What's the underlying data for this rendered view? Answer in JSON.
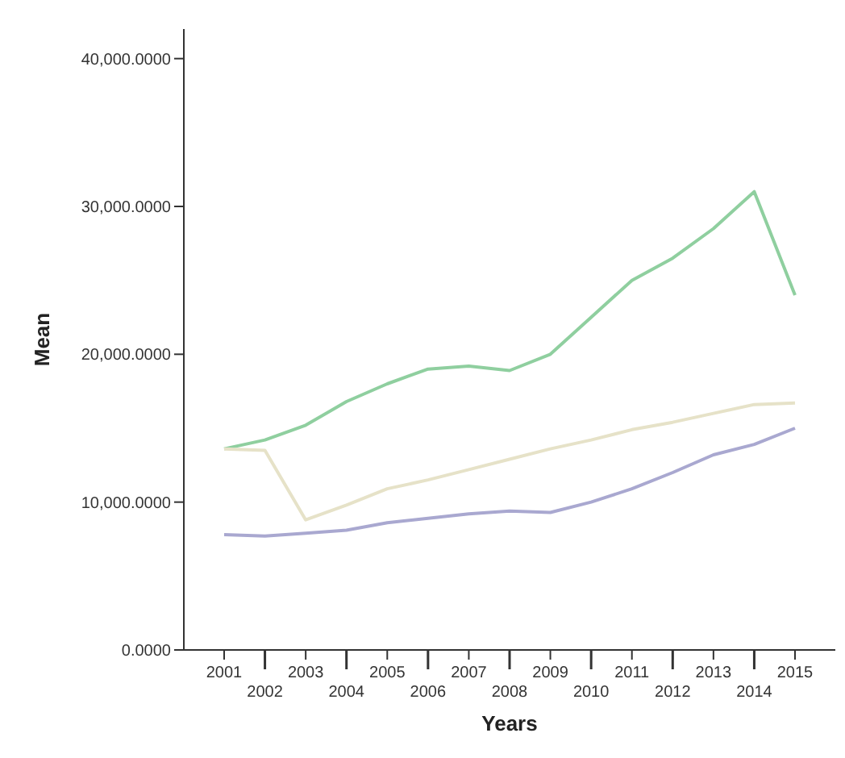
{
  "chart_data": {
    "type": "line",
    "xlabel": "Years",
    "ylabel": "Mean",
    "categories": [
      "2001",
      "2002",
      "2003",
      "2004",
      "2005",
      "2006",
      "2007",
      "2008",
      "2009",
      "2010",
      "2011",
      "2012",
      "2013",
      "2014",
      "2015"
    ],
    "series": [
      {
        "color": "#8fcf9f",
        "values": [
          13600,
          14200,
          15200,
          16800,
          18000,
          19000,
          19200,
          18900,
          20000,
          22500,
          25000,
          26500,
          28500,
          31000,
          24000
        ]
      },
      {
        "color": "#e6e2c8",
        "values": [
          13600,
          13500,
          8800,
          9800,
          10900,
          11500,
          12200,
          12900,
          13600,
          14200,
          14900,
          15400,
          16000,
          16600,
          16700
        ]
      },
      {
        "color": "#a9a8d0",
        "values": [
          7800,
          7700,
          7900,
          8100,
          8600,
          8900,
          9200,
          9400,
          9300,
          10000,
          10900,
          12000,
          13200,
          13900,
          15000
        ]
      }
    ],
    "ylim": [
      0,
      42000
    ],
    "yticks": [
      {
        "value": 0,
        "label": "0.0000"
      },
      {
        "value": 10000,
        "label": "10,000.0000"
      },
      {
        "value": 20000,
        "label": "20,000.0000"
      },
      {
        "value": 30000,
        "label": "30,000.0000"
      },
      {
        "value": 40000,
        "label": "40,000.0000"
      }
    ],
    "grid": false,
    "legend": false,
    "marker": "none",
    "line_style": "solid"
  }
}
